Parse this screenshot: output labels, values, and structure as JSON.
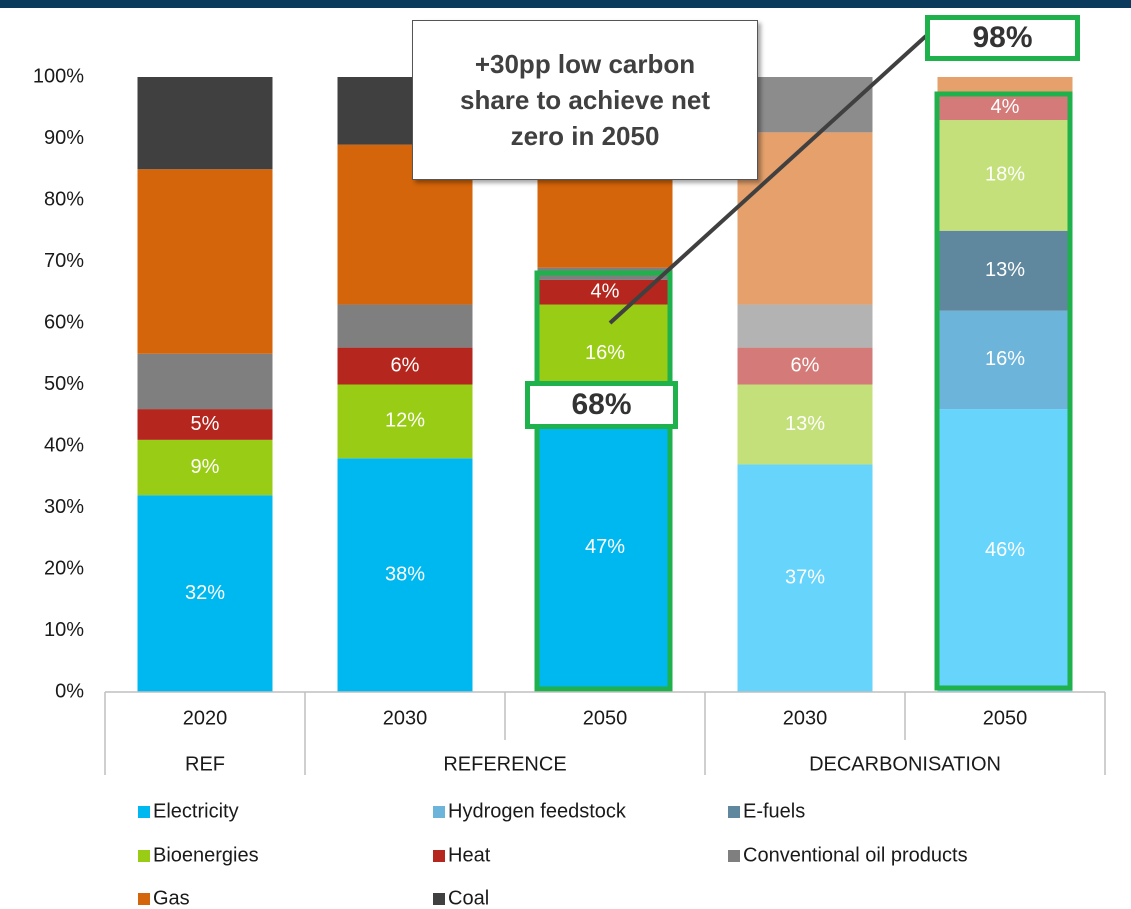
{
  "chart_data": {
    "type": "stacked-bar",
    "categories": [
      "2020",
      "2030",
      "2050",
      "2030",
      "2050"
    ],
    "groups": [
      {
        "label": "REF",
        "size": 1
      },
      {
        "label": "REFERENCE",
        "size": 2
      },
      {
        "label": "DECARBONISATION",
        "size": 2
      }
    ],
    "series": [
      {
        "name": "Electricity",
        "color": "#00b8f0",
        "colors": [
          "#00b8f0",
          "#00b8f0",
          "#00b8f0",
          "#66d4fb",
          "#66d4fb"
        ],
        "values": [
          32,
          38,
          47,
          37,
          46
        ],
        "value_labels": [
          "32%",
          "38%",
          "47%",
          "37%",
          "46%"
        ]
      },
      {
        "name": "Hydrogen feedstock",
        "color": "#6cb4d9",
        "colors": [
          "#6cb4d9",
          "#6cb4d9",
          "#6cb4d9",
          "#6cb4d9",
          "#6cb4d9"
        ],
        "values": [
          null,
          null,
          null,
          null,
          16
        ],
        "value_labels": [
          null,
          null,
          null,
          null,
          "16%"
        ]
      },
      {
        "name": "E-fuels",
        "color": "#5f879e",
        "colors": [
          "#5f879e",
          "#5f879e",
          "#5f879e",
          "#5f879e",
          "#5f879e"
        ],
        "values": [
          null,
          null,
          null,
          null,
          13
        ],
        "value_labels": [
          null,
          null,
          null,
          null,
          "13%"
        ]
      },
      {
        "name": "Bioenergies",
        "color": "#99cc14",
        "colors": [
          "#99cc14",
          "#99cc14",
          "#99cc14",
          "#c4e07a",
          "#c4e07a"
        ],
        "values": [
          9,
          12,
          16,
          13,
          18
        ],
        "value_labels": [
          "9%",
          "12%",
          "16%",
          "13%",
          "18%"
        ]
      },
      {
        "name": "Heat",
        "color": "#b5261e",
        "colors": [
          "#b5261e",
          "#b5261e",
          "#b5261e",
          "#d47a78",
          "#d47a78"
        ],
        "values": [
          5,
          6,
          4,
          6,
          4
        ],
        "value_labels": [
          "5%",
          "6%",
          "4%",
          "6%",
          "4%"
        ]
      },
      {
        "name": "Conventional oil products",
        "color": "#7f7f7f",
        "colors": [
          "#7f7f7f",
          "#7f7f7f",
          "#7f7f7f",
          "#b3b3b3",
          "#b3b3b3"
        ],
        "values": [
          9,
          7,
          2,
          7,
          null
        ],
        "value_labels": [
          null,
          null,
          null,
          null,
          null
        ]
      },
      {
        "name": "Gas",
        "color": "#d4650a",
        "colors": [
          "#d4650a",
          "#d4650a",
          "#d4650a",
          "#e5a06c",
          "#e5a06c"
        ],
        "values": [
          30,
          26,
          21,
          28,
          3
        ],
        "value_labels": [
          null,
          null,
          null,
          null,
          null
        ]
      },
      {
        "name": "Coal",
        "color": "#404040",
        "colors": [
          "#404040",
          "#404040",
          "#404040",
          "#8c8c8c",
          "#8c8c8c"
        ],
        "values": [
          15,
          11,
          10,
          9,
          null
        ],
        "value_labels": [
          null,
          null,
          null,
          null,
          null
        ]
      }
    ],
    "ylim": [
      0,
      100
    ],
    "yticks": [
      {
        "value": 0,
        "label": "0%"
      },
      {
        "value": 10,
        "label": "10%"
      },
      {
        "value": 20,
        "label": "20%"
      },
      {
        "value": 30,
        "label": "30%"
      },
      {
        "value": 40,
        "label": "40%"
      },
      {
        "value": 50,
        "label": "50%"
      },
      {
        "value": 60,
        "label": "60%"
      },
      {
        "value": 70,
        "label": "70%"
      },
      {
        "value": 80,
        "label": "80%"
      },
      {
        "value": 90,
        "label": "90%"
      },
      {
        "value": 100,
        "label": "100%"
      }
    ],
    "annotations": [
      {
        "text": "+30pp low carbon share to achieve net zero in 2050"
      },
      {
        "text": "68%"
      },
      {
        "text": "98%"
      }
    ]
  }
}
